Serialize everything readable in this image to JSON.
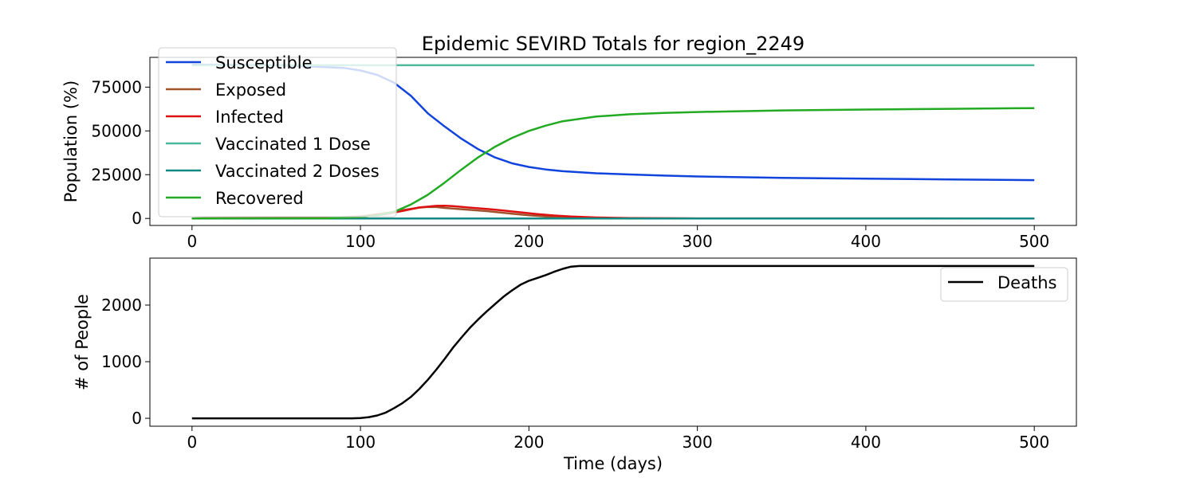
{
  "title": "Epidemic SEVIRD Totals for region_2249",
  "chart_data": [
    {
      "type": "line",
      "title": "Epidemic SEVIRD Totals for region_2249",
      "xlabel": "",
      "ylabel": "Population (%)",
      "xlim": [
        -25,
        525
      ],
      "ylim": [
        -4000,
        92000
      ],
      "xticks": [
        0,
        100,
        200,
        300,
        400,
        500
      ],
      "yticks": [
        0,
        25000,
        50000,
        75000
      ],
      "ytick_labels": [
        "0",
        "25000",
        "50000",
        "75000"
      ],
      "grid": false,
      "legend_position": "upper-left",
      "series": [
        {
          "name": "Susceptible",
          "color": "#1144dd",
          "points": [
            [
              0,
              87800
            ],
            [
              50,
              87600
            ],
            [
              90,
              86000
            ],
            [
              100,
              84500
            ],
            [
              110,
              82000
            ],
            [
              120,
              77500
            ],
            [
              130,
              70000
            ],
            [
              140,
              60000
            ],
            [
              150,
              52500
            ],
            [
              160,
              45500
            ],
            [
              170,
              39500
            ],
            [
              180,
              34800
            ],
            [
              190,
              31500
            ],
            [
              200,
              29400
            ],
            [
              210,
              28000
            ],
            [
              220,
              27000
            ],
            [
              240,
              25800
            ],
            [
              260,
              25100
            ],
            [
              280,
              24500
            ],
            [
              300,
              24000
            ],
            [
              350,
              23200
            ],
            [
              400,
              22700
            ],
            [
              450,
              22300
            ],
            [
              500,
              21900
            ]
          ]
        },
        {
          "name": "Exposed",
          "color": "#a0522d",
          "points": [
            [
              0,
              0
            ],
            [
              80,
              300
            ],
            [
              100,
              1200
            ],
            [
              115,
              3000
            ],
            [
              125,
              4800
            ],
            [
              135,
              6200
            ],
            [
              140,
              6600
            ],
            [
              145,
              6500
            ],
            [
              150,
              6000
            ],
            [
              160,
              5300
            ],
            [
              175,
              4200
            ],
            [
              190,
              2700
            ],
            [
              200,
              1800
            ],
            [
              210,
              1100
            ],
            [
              220,
              650
            ],
            [
              240,
              250
            ],
            [
              260,
              100
            ],
            [
              300,
              20
            ],
            [
              500,
              0
            ]
          ]
        },
        {
          "name": "Infected",
          "color": "#dd1111",
          "points": [
            [
              0,
              0
            ],
            [
              80,
              200
            ],
            [
              100,
              1000
            ],
            [
              115,
              2500
            ],
            [
              125,
              4300
            ],
            [
              135,
              6300
            ],
            [
              145,
              7200
            ],
            [
              150,
              7300
            ],
            [
              155,
              7000
            ],
            [
              165,
              6200
            ],
            [
              175,
              5400
            ],
            [
              185,
              4500
            ],
            [
              195,
              3500
            ],
            [
              205,
              2500
            ],
            [
              215,
              1700
            ],
            [
              225,
              1100
            ],
            [
              240,
              550
            ],
            [
              260,
              250
            ],
            [
              300,
              60
            ],
            [
              500,
              0
            ]
          ]
        },
        {
          "name": "Vaccinated 1 Dose",
          "color": "#4db89a",
          "points": [
            [
              0,
              87500
            ],
            [
              500,
              87500
            ]
          ]
        },
        {
          "name": "Vaccinated 2 Doses",
          "color": "#108a80",
          "points": [
            [
              0,
              0
            ],
            [
              500,
              0
            ]
          ]
        },
        {
          "name": "Recovered",
          "color": "#22aa22",
          "points": [
            [
              0,
              0
            ],
            [
              80,
              100
            ],
            [
              100,
              800
            ],
            [
              110,
              1800
            ],
            [
              120,
              3800
            ],
            [
              130,
              8000
            ],
            [
              140,
              13500
            ],
            [
              150,
              20500
            ],
            [
              160,
              28000
            ],
            [
              170,
              35000
            ],
            [
              180,
              41000
            ],
            [
              190,
              46000
            ],
            [
              200,
              50000
            ],
            [
              210,
              53000
            ],
            [
              220,
              55500
            ],
            [
              240,
              58200
            ],
            [
              260,
              59500
            ],
            [
              280,
              60300
            ],
            [
              300,
              60800
            ],
            [
              350,
              61700
            ],
            [
              400,
              62200
            ],
            [
              450,
              62600
            ],
            [
              500,
              63000
            ]
          ]
        }
      ]
    },
    {
      "type": "line",
      "title": "",
      "xlabel": "Time (days)",
      "ylabel": "# of People",
      "xlim": [
        -25,
        525
      ],
      "ylim": [
        -140,
        2830
      ],
      "xticks": [
        0,
        100,
        200,
        300,
        400,
        500
      ],
      "yticks": [
        0,
        1000,
        2000
      ],
      "ytick_labels": [
        "0",
        "1000",
        "2000"
      ],
      "grid": false,
      "legend_position": "upper-right",
      "series": [
        {
          "name": "Deaths",
          "color": "#000000",
          "points": [
            [
              0,
              0
            ],
            [
              50,
              0
            ],
            [
              95,
              0
            ],
            [
              100,
              5
            ],
            [
              105,
              20
            ],
            [
              110,
              50
            ],
            [
              115,
              100
            ],
            [
              120,
              180
            ],
            [
              125,
              270
            ],
            [
              130,
              380
            ],
            [
              135,
              520
            ],
            [
              140,
              680
            ],
            [
              145,
              860
            ],
            [
              150,
              1050
            ],
            [
              155,
              1250
            ],
            [
              160,
              1430
            ],
            [
              165,
              1600
            ],
            [
              170,
              1750
            ],
            [
              175,
              1890
            ],
            [
              180,
              2020
            ],
            [
              185,
              2150
            ],
            [
              190,
              2260
            ],
            [
              195,
              2360
            ],
            [
              200,
              2430
            ],
            [
              205,
              2480
            ],
            [
              210,
              2530
            ],
            [
              215,
              2590
            ],
            [
              220,
              2640
            ],
            [
              225,
              2680
            ],
            [
              230,
              2690
            ],
            [
              300,
              2690
            ],
            [
              400,
              2690
            ],
            [
              500,
              2690
            ]
          ]
        }
      ]
    }
  ]
}
